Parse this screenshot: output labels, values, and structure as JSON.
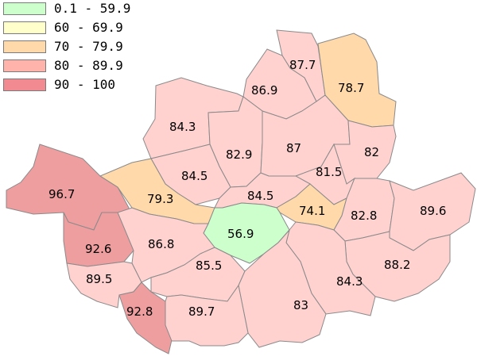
{
  "legend": [
    {
      "range": "0.1 - 59.9",
      "color": "#ccffcc"
    },
    {
      "range": "60 - 69.9",
      "color": "#ffffcc"
    },
    {
      "range": "70 - 79.9",
      "color": "#ffd9aa"
    },
    {
      "range": "80 - 89.9",
      "color": "#ffb3ab"
    },
    {
      "range": "90 - 100",
      "color": "#f28a92"
    }
  ],
  "district_colors": {
    "green": "#ccffcc",
    "orange": "#ffd9aa",
    "pink_light": "#ffd2d0",
    "pink_mid": "#ffb4b2",
    "pink_dark": "#ef9ea0"
  },
  "districts": [
    {
      "name": "district-87-7",
      "value": "87.7",
      "tier": "pink_light"
    },
    {
      "name": "district-78-7",
      "value": "78.7",
      "tier": "orange"
    },
    {
      "name": "district-86-9",
      "value": "86.9",
      "tier": "pink_light"
    },
    {
      "name": "district-84-3-northwest",
      "value": "84.3",
      "tier": "pink_light"
    },
    {
      "name": "district-82-9",
      "value": "82.9",
      "tier": "pink_light"
    },
    {
      "name": "district-87",
      "value": "87",
      "tier": "pink_light"
    },
    {
      "name": "district-82",
      "value": "82",
      "tier": "pink_light"
    },
    {
      "name": "district-84-5-west",
      "value": "84.5",
      "tier": "pink_light"
    },
    {
      "name": "district-81-5",
      "value": "81.5",
      "tier": "pink_light"
    },
    {
      "name": "district-96-7",
      "value": "96.7",
      "tier": "pink_dark"
    },
    {
      "name": "district-79-3",
      "value": "79.3",
      "tier": "orange"
    },
    {
      "name": "district-84-5-central",
      "value": "84.5",
      "tier": "pink_light"
    },
    {
      "name": "district-74-1",
      "value": "74.1",
      "tier": "orange"
    },
    {
      "name": "district-82-8",
      "value": "82.8",
      "tier": "pink_light"
    },
    {
      "name": "district-89-6",
      "value": "89.6",
      "tier": "pink_light"
    },
    {
      "name": "district-56-9",
      "value": "56.9",
      "tier": "green"
    },
    {
      "name": "district-92-6",
      "value": "92.6",
      "tier": "pink_dark"
    },
    {
      "name": "district-86-8",
      "value": "86.8",
      "tier": "pink_light"
    },
    {
      "name": "district-88-2",
      "value": "88.2",
      "tier": "pink_light"
    },
    {
      "name": "district-89-5",
      "value": "89.5",
      "tier": "pink_light"
    },
    {
      "name": "district-85-5",
      "value": "85.5",
      "tier": "pink_light"
    },
    {
      "name": "district-84-3-southeast",
      "value": "84.3",
      "tier": "pink_light"
    },
    {
      "name": "district-83",
      "value": "83",
      "tier": "pink_light"
    },
    {
      "name": "district-92-8",
      "value": "92.8",
      "tier": "pink_dark"
    },
    {
      "name": "district-89-7",
      "value": "89.7",
      "tier": "pink_light"
    }
  ]
}
